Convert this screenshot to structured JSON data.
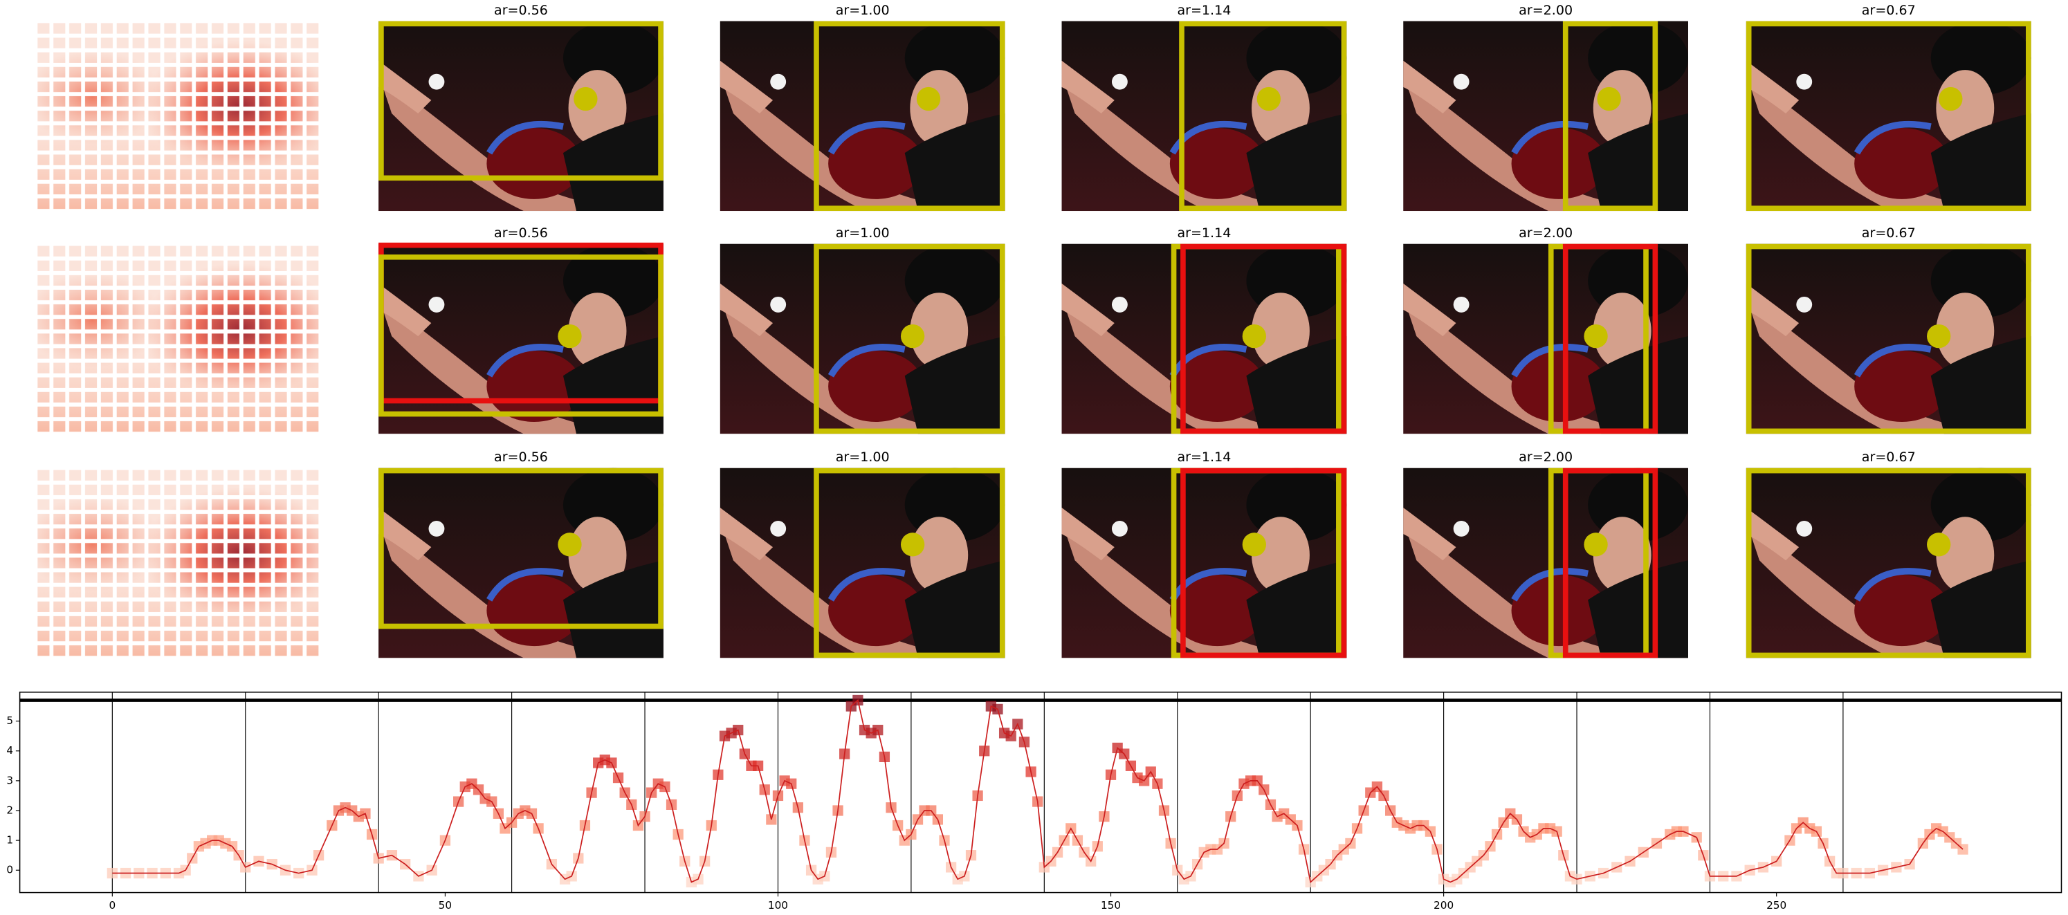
{
  "panels": {
    "rows": [
      {
        "titles": [
          "ar=0.56",
          "ar=1.00",
          "ar=1.14",
          "ar=2.00",
          "ar=0.67"
        ]
      },
      {
        "titles": [
          "ar=0.56",
          "ar=1.00",
          "ar=1.14",
          "ar=2.00",
          "ar=0.67"
        ]
      },
      {
        "titles": [
          "ar=0.56",
          "ar=1.00",
          "ar=1.14",
          "ar=2.00",
          "ar=0.67"
        ]
      }
    ]
  },
  "chart_data": {
    "type": "line",
    "x": [
      0,
      2,
      4,
      6,
      8,
      10,
      11,
      12,
      13,
      14,
      15,
      16,
      17,
      18,
      19,
      20,
      22,
      24,
      26,
      28,
      30,
      31,
      33,
      34,
      35,
      36,
      37,
      38,
      39,
      40,
      42,
      44,
      46,
      48,
      50,
      52,
      53,
      54,
      55,
      56,
      57,
      58,
      59,
      60,
      61,
      62,
      63,
      64,
      66,
      68,
      69,
      70,
      71,
      72,
      73,
      74,
      75,
      76,
      77,
      78,
      79,
      80,
      81,
      82,
      83,
      84,
      85,
      86,
      87,
      88,
      89,
      90,
      91,
      92,
      93,
      94,
      95,
      96,
      97,
      98,
      99,
      100,
      101,
      102,
      103,
      104,
      105,
      106,
      107,
      108,
      109,
      110,
      111,
      112,
      113,
      114,
      115,
      116,
      117,
      118,
      119,
      120,
      121,
      122,
      123,
      124,
      125,
      126,
      127,
      128,
      129,
      130,
      131,
      132,
      133,
      134,
      135,
      136,
      137,
      138,
      139,
      140,
      141,
      142,
      143,
      144,
      145,
      146,
      147,
      148,
      149,
      150,
      151,
      152,
      153,
      154,
      155,
      156,
      157,
      158,
      159,
      160,
      161,
      162,
      163,
      164,
      165,
      166,
      167,
      168,
      169,
      170,
      171,
      172,
      173,
      174,
      175,
      176,
      177,
      178,
      179,
      180,
      181,
      182,
      183,
      184,
      185,
      186,
      187,
      188,
      189,
      190,
      191,
      192,
      193,
      194,
      195,
      196,
      197,
      198,
      199,
      200,
      201,
      202,
      203,
      204,
      205,
      206,
      207,
      208,
      209,
      210,
      211,
      212,
      213,
      214,
      215,
      216,
      217,
      218,
      219,
      220,
      222,
      224,
      226,
      228,
      230,
      232,
      234,
      235,
      236,
      238,
      239,
      240,
      242,
      244,
      246,
      248,
      250,
      252,
      253,
      254,
      255,
      256,
      257,
      258,
      259,
      260,
      262,
      264,
      266,
      268,
      270,
      272,
      273,
      274,
      275,
      276,
      277,
      278
    ],
    "series": [
      {
        "color": "#cc1f1f",
        "values": [
          -0.1,
          -0.1,
          -0.1,
          -0.1,
          -0.1,
          -0.1,
          0.0,
          0.4,
          0.8,
          0.9,
          1.0,
          1.0,
          0.9,
          0.8,
          0.5,
          0.1,
          0.3,
          0.2,
          0.0,
          -0.1,
          0.0,
          0.5,
          1.5,
          2.0,
          2.1,
          2.0,
          1.8,
          1.9,
          1.2,
          0.4,
          0.5,
          0.2,
          -0.2,
          0.0,
          1.0,
          2.3,
          2.8,
          2.9,
          2.7,
          2.4,
          2.3,
          1.9,
          1.4,
          1.6,
          1.9,
          2.0,
          1.9,
          1.4,
          0.2,
          -0.3,
          -0.2,
          0.4,
          1.5,
          2.6,
          3.6,
          3.7,
          3.6,
          3.1,
          2.6,
          2.2,
          1.5,
          1.8,
          2.6,
          2.9,
          2.8,
          2.2,
          1.2,
          0.3,
          -0.4,
          -0.3,
          0.3,
          1.5,
          3.2,
          4.5,
          4.6,
          4.7,
          3.9,
          3.5,
          3.5,
          2.7,
          1.7,
          2.5,
          3.0,
          2.9,
          2.1,
          1.0,
          0.0,
          -0.3,
          -0.2,
          0.6,
          2.0,
          3.9,
          5.5,
          5.7,
          4.7,
          4.6,
          4.7,
          3.8,
          2.1,
          1.5,
          1.0,
          1.2,
          1.7,
          2.0,
          2.0,
          1.7,
          1.0,
          0.1,
          -0.3,
          -0.2,
          0.5,
          2.5,
          4.0,
          5.5,
          5.4,
          4.6,
          4.5,
          4.9,
          4.3,
          3.3,
          2.3,
          0.1,
          0.3,
          0.6,
          1.0,
          1.4,
          1.0,
          0.6,
          0.3,
          0.8,
          1.8,
          3.2,
          4.1,
          3.9,
          3.5,
          3.1,
          3.0,
          3.3,
          2.9,
          2.0,
          0.9,
          0.0,
          -0.3,
          -0.2,
          0.2,
          0.6,
          0.7,
          0.7,
          0.9,
          1.8,
          2.5,
          2.9,
          3.0,
          3.0,
          2.7,
          2.2,
          1.8,
          1.9,
          1.7,
          1.5,
          0.7,
          -0.4,
          -0.2,
          0.0,
          0.2,
          0.5,
          0.7,
          0.9,
          1.4,
          2.0,
          2.6,
          2.8,
          2.5,
          2.0,
          1.6,
          1.5,
          1.4,
          1.5,
          1.5,
          1.3,
          0.7,
          -0.3,
          -0.4,
          -0.3,
          -0.1,
          0.1,
          0.3,
          0.5,
          0.8,
          1.2,
          1.6,
          1.9,
          1.7,
          1.3,
          1.1,
          1.2,
          1.4,
          1.4,
          1.3,
          0.5,
          -0.2,
          -0.3,
          -0.2,
          -0.1,
          0.1,
          0.3,
          0.6,
          0.9,
          1.2,
          1.3,
          1.3,
          1.1,
          0.5,
          -0.2,
          -0.2,
          -0.2,
          0.0,
          0.1,
          0.3,
          1.0,
          1.4,
          1.6,
          1.4,
          1.3,
          0.9,
          0.3,
          -0.1,
          -0.1,
          -0.1,
          -0.1,
          0.0,
          0.1,
          0.2,
          0.9,
          1.2,
          1.4,
          1.3,
          1.1,
          0.9,
          0.7
        ]
      }
    ],
    "xlim": [
      -13.9,
      292.8
    ],
    "ylim": [
      -0.75,
      5.97
    ],
    "xticks": [
      0,
      50,
      100,
      150,
      200,
      250
    ],
    "yticks": [
      0,
      1,
      2,
      3,
      4,
      5
    ],
    "vlines": [
      0,
      20,
      40,
      60,
      80,
      100,
      120,
      140,
      160,
      180,
      200,
      220,
      240,
      260
    ],
    "hline": 5.7,
    "marker": "square",
    "marker_cmap": "Reds"
  }
}
